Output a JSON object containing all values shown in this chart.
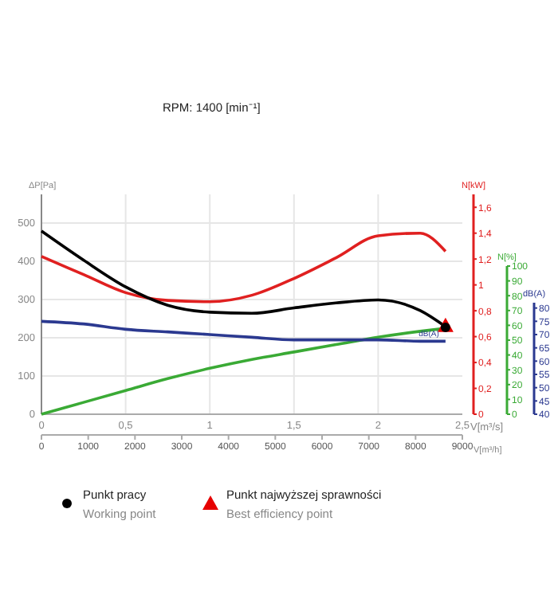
{
  "chart_data": [
    {
      "type": "line",
      "subtitle": "RPM: 1400 [min⁻¹]",
      "xlabel": "V[m³/s]",
      "x2label": "V[m³/h]",
      "ylabel": "ΔP[Pa]",
      "y2label": "N[kW]",
      "y3label": "N[%]",
      "xlim": [
        0,
        2.5
      ],
      "xticks": [
        0,
        {
          "value": 0.5,
          "label": "0,5"
        },
        1,
        {
          "value": 1.5,
          "label": "1,5"
        },
        2,
        {
          "value": 2.5,
          "label": "2,5"
        }
      ],
      "x2lim": [
        0,
        9000
      ],
      "x2ticks": [
        0,
        1000,
        2000,
        3000,
        4000,
        5000,
        6000,
        7000,
        8000,
        9000
      ],
      "ylim": [
        0,
        575
      ],
      "yticks": [
        0,
        100,
        200,
        300,
        400,
        500
      ],
      "y2lim": [
        0,
        1.7
      ],
      "y2ticks": [
        0,
        {
          "value": 0.2,
          "label": "0,2"
        },
        {
          "value": 0.4,
          "label": "0,4"
        },
        {
          "value": 0.6,
          "label": "0,6"
        },
        {
          "value": 0.8,
          "label": "0,8"
        },
        1,
        {
          "value": 1.2,
          "label": "1,2"
        },
        {
          "value": 1.4,
          "label": "1,4"
        },
        {
          "value": 1.6,
          "label": "1,6"
        }
      ],
      "y3lim": [
        0,
        100
      ],
      "y3ticks": [
        0,
        10,
        20,
        30,
        40,
        50,
        60,
        70,
        80,
        90,
        100
      ],
      "grid": true,
      "legend": "bottom",
      "series": [
        {
          "axis": "y2",
          "color": "#e02020",
          "x": [
            0,
            0.25,
            0.5,
            0.75,
            1,
            1.25,
            1.5,
            1.75,
            2,
            2.25,
            2.4
          ],
          "values": [
            1.22,
            1.08,
            0.94,
            0.88,
            0.87,
            0.92,
            1.05,
            1.21,
            1.38,
            1.4,
            1.26
          ]
        },
        {
          "axis": "y3",
          "color": "#3aaa35",
          "x": [
            0,
            0.25,
            0.5,
            0.75,
            1,
            1.25,
            1.5,
            1.75,
            2,
            2.25,
            2.4
          ],
          "values": [
            0,
            8,
            16,
            24,
            31,
            37,
            42,
            47,
            52,
            56,
            58
          ]
        },
        {
          "color": "#000000",
          "x": [
            0,
            0.25,
            0.5,
            0.75,
            1,
            1.25,
            1.5,
            1.75,
            2,
            2.25,
            2.4
          ],
          "values": [
            479,
            403,
            333,
            285,
            267,
            264,
            278,
            291,
            299,
            271,
            229
          ]
        },
        {
          "type": "scatter",
          "marker": "triangle",
          "name": "Punkt najwyższej sprawności\nBest efficiency point",
          "color": "#e60000",
          "x": [
            2.4
          ],
          "values": [
            232
          ]
        },
        {
          "type": "scatter",
          "marker": "circle",
          "name": "Punkt pracy\nWorking point",
          "color": "#000000",
          "x": [
            2.4
          ],
          "values": [
            227
          ]
        }
      ]
    },
    {
      "type": "line",
      "ylabel": "dB(A)",
      "xlim": [
        0,
        2.5
      ],
      "ylim": [
        40,
        82
      ],
      "yticks": [
        40,
        45,
        50,
        55,
        60,
        65,
        70,
        75,
        80
      ],
      "tick_labels": "y",
      "series": [
        {
          "name": "dB(A)",
          "color": "#2b3990",
          "x": [
            0,
            0.25,
            0.5,
            0.75,
            1,
            1.25,
            1.5,
            1.75,
            2,
            2.25,
            2.4
          ],
          "values": [
            75,
            74,
            72,
            71,
            70,
            69,
            68,
            68,
            68,
            67.5,
            67.5
          ]
        }
      ]
    }
  ]
}
